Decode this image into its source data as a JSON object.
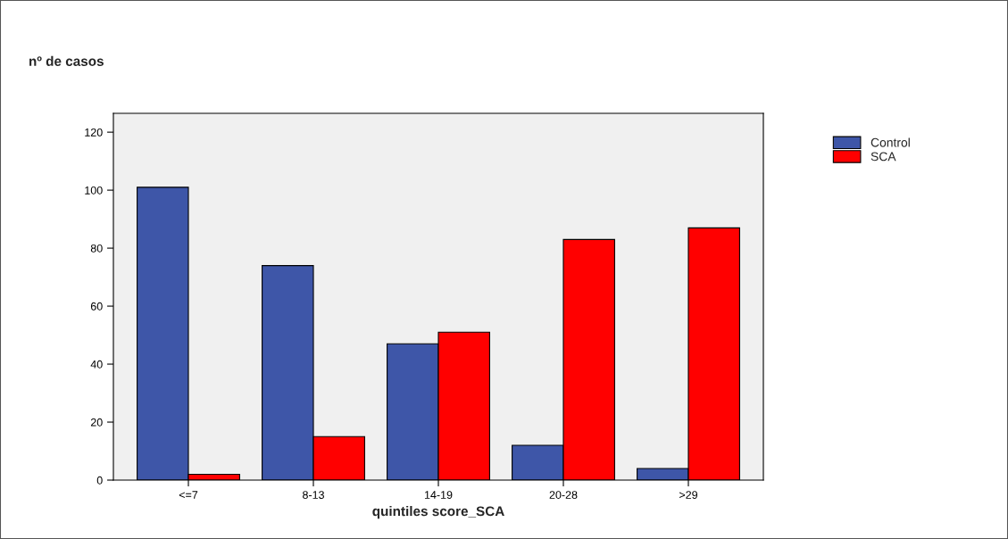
{
  "chart_data": {
    "type": "bar",
    "xlabel": "quintiles score_SCA",
    "ylabel": "nº de casos",
    "categories": [
      "<=7",
      "8-13",
      "14-19",
      "20-28",
      ">29"
    ],
    "series": [
      {
        "name": "Control",
        "color": "#3e56a8",
        "values": [
          101,
          74,
          47,
          12,
          4
        ]
      },
      {
        "name": "SCA",
        "color": "#ff0000",
        "values": [
          2,
          15,
          51,
          83,
          87
        ]
      }
    ],
    "ylim": [
      0,
      126.5
    ],
    "yticks": [
      0,
      20,
      40,
      60,
      80,
      100,
      120
    ],
    "grid": false,
    "legend": "top right"
  }
}
